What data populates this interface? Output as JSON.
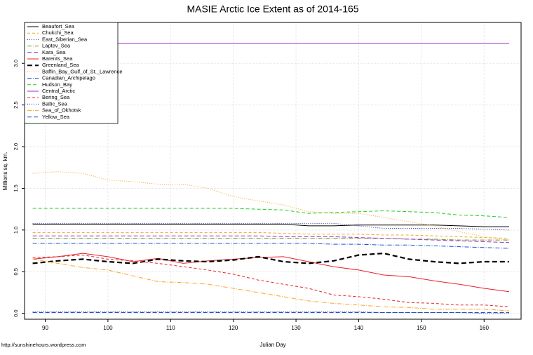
{
  "chart_data": {
    "type": "line",
    "title": "MASIE Arctic Ice Extent as of 2014-165",
    "x_label": "Julian Day",
    "y_label": "Millions sq. km.",
    "footer": "http://sunshinehours.wordpress.com",
    "grid": true,
    "legend": "top-left",
    "xlim": [
      86.7,
      165.9
    ],
    "ylim": [
      -0.07,
      3.49
    ],
    "xticks": [
      90,
      100,
      110,
      120,
      130,
      140,
      150,
      160
    ],
    "yticks": [
      {
        "value": 0,
        "label": "0.0"
      },
      0.5,
      {
        "value": 1,
        "label": "1.0"
      },
      1.5,
      {
        "value": 2,
        "label": "2.0"
      },
      2.5,
      {
        "value": 3,
        "label": "3.0"
      }
    ],
    "x": [
      88,
      92,
      96,
      100,
      104,
      108,
      112,
      116,
      120,
      124,
      128,
      132,
      136,
      140,
      144,
      148,
      152,
      156,
      160,
      164
    ],
    "series": [
      {
        "name": "Beaufort_Sea",
        "color": "#000000",
        "dash": "none",
        "values": [
          1.07,
          1.07,
          1.07,
          1.07,
          1.07,
          1.07,
          1.07,
          1.07,
          1.07,
          1.07,
          1.07,
          1.05,
          1.05,
          1.06,
          1.06,
          1.06,
          1.06,
          1.05,
          1.04,
          1.04
        ]
      },
      {
        "name": "Chukchi_Sea",
        "color": "#f5a623",
        "dash": "4 3",
        "values": [
          0.97,
          0.97,
          0.97,
          0.97,
          0.97,
          0.97,
          0.97,
          0.97,
          0.97,
          0.97,
          0.96,
          0.95,
          0.95,
          0.95,
          0.94,
          0.94,
          0.93,
          0.92,
          0.91,
          0.9
        ]
      },
      {
        "name": "East_Siberian_Sea",
        "color": "#1a1a80",
        "dash": "1 2",
        "values": [
          1.08,
          1.08,
          1.08,
          1.08,
          1.08,
          1.08,
          1.08,
          1.08,
          1.08,
          1.08,
          1.08,
          1.08,
          1.08,
          1.05,
          1.02,
          1.02,
          1.02,
          1.02,
          1.01,
          1.0
        ]
      },
      {
        "name": "Laptev_Sea",
        "color": "#6b8e23",
        "dash": "6 2 1 2",
        "values": [
          0.9,
          0.9,
          0.9,
          0.9,
          0.9,
          0.9,
          0.9,
          0.9,
          0.9,
          0.9,
          0.9,
          0.9,
          0.9,
          0.9,
          0.9,
          0.89,
          0.89,
          0.88,
          0.88,
          0.88
        ]
      },
      {
        "name": "Kara_Sea",
        "color": "#9932cc",
        "dash": "6 3",
        "values": [
          0.93,
          0.93,
          0.93,
          0.93,
          0.93,
          0.93,
          0.93,
          0.93,
          0.93,
          0.93,
          0.92,
          0.92,
          0.92,
          0.91,
          0.9,
          0.89,
          0.88,
          0.87,
          0.86,
          0.85
        ]
      },
      {
        "name": "Barents_Sea",
        "color": "#e8202a",
        "dash": "none",
        "values": [
          0.65,
          0.68,
          0.72,
          0.68,
          0.62,
          0.66,
          0.6,
          0.63,
          0.65,
          0.67,
          0.68,
          0.62,
          0.56,
          0.52,
          0.46,
          0.44,
          0.39,
          0.35,
          0.3,
          0.26
        ]
      },
      {
        "name": "Greenland_Sea",
        "color": "#000000",
        "dash": "7 4",
        "width": 2.2,
        "values": [
          0.6,
          0.63,
          0.65,
          0.62,
          0.6,
          0.65,
          0.63,
          0.62,
          0.64,
          0.68,
          0.62,
          0.6,
          0.63,
          0.7,
          0.72,
          0.65,
          0.62,
          0.6,
          0.62,
          0.62
        ]
      },
      {
        "name": "Baffin_Bay_Gulf_of_St._Lawrence",
        "color": "#f5a623",
        "dash": "1 2",
        "values": [
          1.68,
          1.7,
          1.68,
          1.6,
          1.58,
          1.55,
          1.55,
          1.5,
          1.4,
          1.35,
          1.3,
          1.22,
          1.2,
          1.2,
          1.15,
          1.1,
          1.05,
          0.98,
          0.92,
          0.88
        ]
      },
      {
        "name": "Canadian_Archipelago",
        "color": "#1a4fd6",
        "dash": "6 2 1 2",
        "values": [
          0.84,
          0.84,
          0.84,
          0.84,
          0.84,
          0.84,
          0.84,
          0.84,
          0.84,
          0.84,
          0.84,
          0.84,
          0.83,
          0.83,
          0.82,
          0.82,
          0.81,
          0.8,
          0.79,
          0.78
        ]
      },
      {
        "name": "Hudson_Bay",
        "color": "#22cc22",
        "dash": "5 3",
        "values": [
          1.26,
          1.26,
          1.26,
          1.26,
          1.26,
          1.26,
          1.26,
          1.26,
          1.26,
          1.25,
          1.24,
          1.2,
          1.21,
          1.22,
          1.23,
          1.22,
          1.21,
          1.18,
          1.17,
          1.15
        ]
      },
      {
        "name": "Central_Arctic",
        "color": "#9932cc",
        "dash": "none",
        "values": [
          3.24,
          3.24,
          3.24,
          3.24,
          3.24,
          3.24,
          3.24,
          3.24,
          3.24,
          3.24,
          3.24,
          3.24,
          3.24,
          3.24,
          3.24,
          3.24,
          3.24,
          3.24,
          3.24,
          3.24
        ]
      },
      {
        "name": "Bering_Sea",
        "color": "#e8202a",
        "dash": "4 3",
        "values": [
          0.67,
          0.68,
          0.7,
          0.65,
          0.63,
          0.6,
          0.56,
          0.52,
          0.47,
          0.4,
          0.35,
          0.3,
          0.22,
          0.2,
          0.17,
          0.13,
          0.12,
          0.1,
          0.1,
          0.08
        ]
      },
      {
        "name": "Baltic_Sea",
        "color": "#1a1a80",
        "dash": "1 2",
        "values": [
          0.02,
          0.02,
          0.02,
          0.02,
          0.02,
          0.02,
          0.02,
          0.02,
          0.02,
          0.02,
          0.02,
          0.02,
          0.02,
          0.02,
          0.01,
          0.01,
          0.01,
          0.01,
          0.0,
          0.0
        ]
      },
      {
        "name": "Sea_of_Okhotsk",
        "color": "#f5a623",
        "dash": "6 2 1 2",
        "values": [
          0.65,
          0.6,
          0.55,
          0.52,
          0.45,
          0.38,
          0.37,
          0.35,
          0.3,
          0.25,
          0.2,
          0.15,
          0.12,
          0.1,
          0.08,
          0.07,
          0.05,
          0.05,
          0.05,
          0.03
        ]
      },
      {
        "name": "Yellow_Sea",
        "color": "#1a4fd6",
        "dash": "6 3",
        "values": [
          0.01,
          0.01,
          0.01,
          0.01,
          0.01,
          0.01,
          0.01,
          0.01,
          0.01,
          0.01,
          0.01,
          0.01,
          0.01,
          0.01,
          0.01,
          0.01,
          0.01,
          0.01,
          0.01,
          0.01
        ]
      }
    ]
  }
}
